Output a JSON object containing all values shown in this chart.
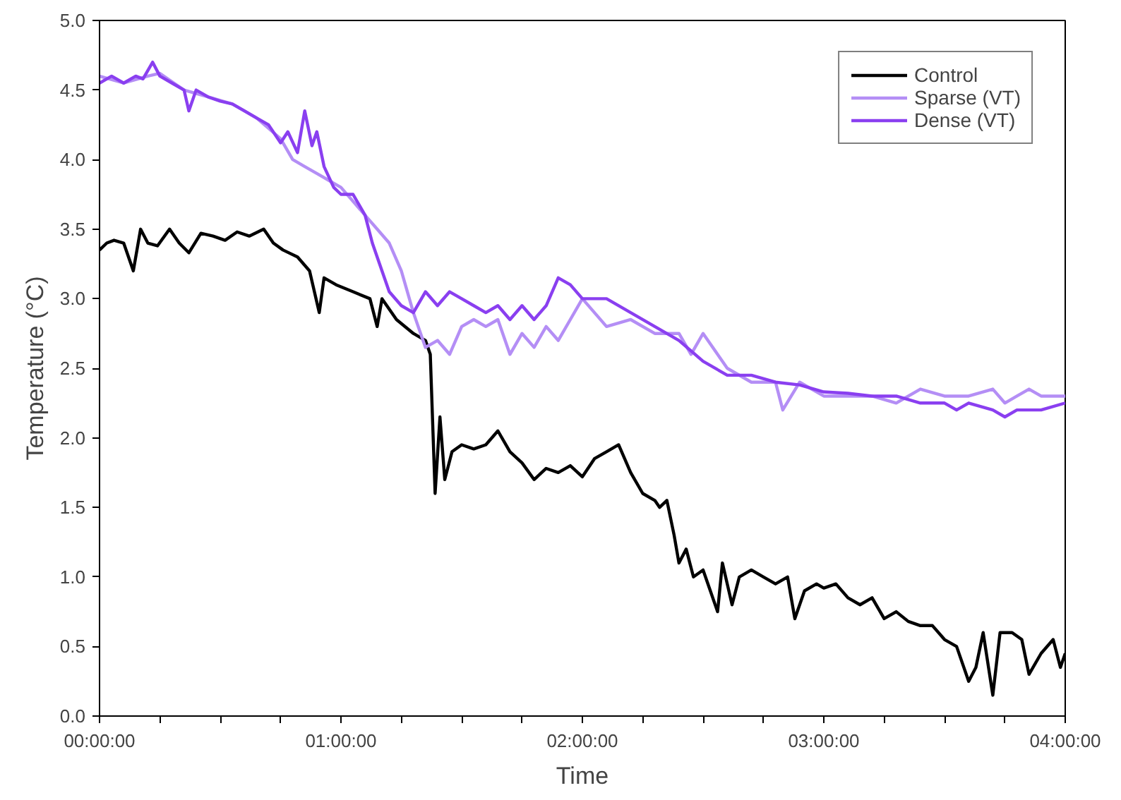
{
  "chart_data": {
    "type": "line",
    "xlabel": "Time",
    "ylabel": "Temperature (°C)",
    "xlim": [
      0,
      4
    ],
    "ylim": [
      0,
      5
    ],
    "xticks": [
      {
        "value": 0,
        "label": "00:00:00"
      },
      {
        "value": 0.25,
        "label": null
      },
      {
        "value": 0.5,
        "label": null
      },
      {
        "value": 0.75,
        "label": null
      },
      {
        "value": 1,
        "label": "01:00:00"
      },
      {
        "value": 1.25,
        "label": null
      },
      {
        "value": 1.5,
        "label": null
      },
      {
        "value": 1.75,
        "label": null
      },
      {
        "value": 2,
        "label": "02:00:00"
      },
      {
        "value": 2.25,
        "label": null
      },
      {
        "value": 2.5,
        "label": null
      },
      {
        "value": 2.75,
        "label": null
      },
      {
        "value": 3,
        "label": "03:00:00"
      },
      {
        "value": 3.25,
        "label": null
      },
      {
        "value": 3.5,
        "label": null
      },
      {
        "value": 3.75,
        "label": null
      },
      {
        "value": 4,
        "label": "04:00:00"
      }
    ],
    "yticks": [
      {
        "value": 0,
        "label": "0.0"
      },
      {
        "value": 0.5,
        "label": "0.5"
      },
      {
        "value": 1,
        "label": "1.0"
      },
      {
        "value": 1.5,
        "label": "1.5"
      },
      {
        "value": 2,
        "label": "2.0"
      },
      {
        "value": 2.5,
        "label": "2.5"
      },
      {
        "value": 3,
        "label": "3.0"
      },
      {
        "value": 3.5,
        "label": "3.5"
      },
      {
        "value": 4,
        "label": "4.0"
      },
      {
        "value": 4.5,
        "label": "4.5"
      },
      {
        "value": 5,
        "label": "5.0"
      }
    ],
    "grid": false,
    "legend": "top right",
    "line_style": "solid",
    "series": [
      {
        "name": "Control",
        "color": "#000000",
        "x": [
          0,
          0.03,
          0.06,
          0.1,
          0.14,
          0.17,
          0.2,
          0.24,
          0.29,
          0.33,
          0.37,
          0.42,
          0.47,
          0.52,
          0.57,
          0.62,
          0.68,
          0.72,
          0.76,
          0.82,
          0.87,
          0.91,
          0.93,
          0.98,
          1.05,
          1.12,
          1.15,
          1.17,
          1.23,
          1.3,
          1.35,
          1.37,
          1.39,
          1.41,
          1.43,
          1.46,
          1.5,
          1.55,
          1.6,
          1.65,
          1.7,
          1.75,
          1.8,
          1.85,
          1.9,
          1.95,
          2.0,
          2.05,
          2.1,
          2.15,
          2.2,
          2.25,
          2.3,
          2.32,
          2.35,
          2.38,
          2.4,
          2.43,
          2.46,
          2.5,
          2.53,
          2.56,
          2.58,
          2.62,
          2.65,
          2.7,
          2.75,
          2.8,
          2.85,
          2.88,
          2.92,
          2.97,
          3.0,
          3.05,
          3.1,
          3.15,
          3.2,
          3.25,
          3.3,
          3.35,
          3.4,
          3.45,
          3.5,
          3.55,
          3.6,
          3.63,
          3.66,
          3.7,
          3.73,
          3.78,
          3.82,
          3.85,
          3.9,
          3.95,
          3.98,
          4.0
        ],
        "values": [
          3.35,
          3.4,
          3.42,
          3.4,
          3.2,
          3.5,
          3.4,
          3.38,
          3.5,
          3.4,
          3.33,
          3.47,
          3.45,
          3.42,
          3.48,
          3.45,
          3.5,
          3.4,
          3.35,
          3.3,
          3.2,
          2.9,
          3.15,
          3.1,
          3.05,
          3.0,
          2.8,
          3.0,
          2.85,
          2.75,
          2.7,
          2.6,
          1.6,
          2.15,
          1.7,
          1.9,
          1.95,
          1.92,
          1.95,
          2.05,
          1.9,
          1.82,
          1.7,
          1.78,
          1.75,
          1.8,
          1.72,
          1.85,
          1.9,
          1.95,
          1.75,
          1.6,
          1.55,
          1.5,
          1.55,
          1.3,
          1.1,
          1.2,
          1.0,
          1.05,
          0.9,
          0.75,
          1.1,
          0.8,
          1.0,
          1.05,
          1.0,
          0.95,
          1.0,
          0.7,
          0.9,
          0.95,
          0.92,
          0.95,
          0.85,
          0.8,
          0.85,
          0.7,
          0.75,
          0.68,
          0.65,
          0.65,
          0.55,
          0.5,
          0.25,
          0.35,
          0.6,
          0.15,
          0.6,
          0.6,
          0.55,
          0.3,
          0.45,
          0.55,
          0.35,
          0.45
        ]
      },
      {
        "name": "Sparse (VT)",
        "color": "#b48ef5",
        "x": [
          0,
          0.1,
          0.2,
          0.25,
          0.35,
          0.45,
          0.55,
          0.65,
          0.75,
          0.8,
          0.85,
          0.9,
          0.95,
          1.0,
          1.05,
          1.1,
          1.15,
          1.2,
          1.25,
          1.3,
          1.35,
          1.4,
          1.45,
          1.5,
          1.55,
          1.6,
          1.65,
          1.7,
          1.75,
          1.8,
          1.85,
          1.9,
          1.95,
          2.0,
          2.05,
          2.1,
          2.2,
          2.3,
          2.4,
          2.45,
          2.5,
          2.6,
          2.7,
          2.8,
          2.83,
          2.9,
          3.0,
          3.1,
          3.2,
          3.3,
          3.4,
          3.5,
          3.6,
          3.7,
          3.75,
          3.8,
          3.85,
          3.9,
          4.0
        ],
        "values": [
          4.6,
          4.55,
          4.6,
          4.62,
          4.5,
          4.45,
          4.4,
          4.3,
          4.15,
          4.0,
          3.95,
          3.9,
          3.85,
          3.8,
          3.7,
          3.6,
          3.5,
          3.4,
          3.2,
          2.9,
          2.65,
          2.7,
          2.6,
          2.8,
          2.85,
          2.8,
          2.85,
          2.6,
          2.75,
          2.65,
          2.8,
          2.7,
          2.85,
          3.0,
          2.9,
          2.8,
          2.85,
          2.75,
          2.75,
          2.6,
          2.75,
          2.5,
          2.4,
          2.4,
          2.2,
          2.4,
          2.3,
          2.3,
          2.3,
          2.25,
          2.35,
          2.3,
          2.3,
          2.35,
          2.25,
          2.3,
          2.35,
          2.3,
          2.3
        ]
      },
      {
        "name": "Dense (VT)",
        "color": "#8a3ff0",
        "x": [
          0,
          0.05,
          0.1,
          0.15,
          0.18,
          0.22,
          0.25,
          0.3,
          0.35,
          0.37,
          0.4,
          0.45,
          0.5,
          0.55,
          0.6,
          0.65,
          0.7,
          0.75,
          0.78,
          0.82,
          0.85,
          0.88,
          0.9,
          0.93,
          0.97,
          1.0,
          1.05,
          1.1,
          1.13,
          1.17,
          1.2,
          1.25,
          1.3,
          1.35,
          1.4,
          1.45,
          1.5,
          1.55,
          1.6,
          1.65,
          1.7,
          1.75,
          1.8,
          1.85,
          1.9,
          1.95,
          2.0,
          2.1,
          2.2,
          2.3,
          2.4,
          2.5,
          2.6,
          2.7,
          2.8,
          2.9,
          3.0,
          3.1,
          3.2,
          3.3,
          3.4,
          3.5,
          3.55,
          3.6,
          3.7,
          3.75,
          3.8,
          3.9,
          4.0
        ],
        "values": [
          4.55,
          4.6,
          4.55,
          4.6,
          4.58,
          4.7,
          4.6,
          4.55,
          4.5,
          4.35,
          4.5,
          4.45,
          4.42,
          4.4,
          4.35,
          4.3,
          4.25,
          4.12,
          4.2,
          4.05,
          4.35,
          4.1,
          4.2,
          3.95,
          3.8,
          3.75,
          3.75,
          3.6,
          3.4,
          3.2,
          3.05,
          2.95,
          2.9,
          3.05,
          2.95,
          3.05,
          3.0,
          2.95,
          2.9,
          2.95,
          2.85,
          2.95,
          2.85,
          2.95,
          3.15,
          3.1,
          3.0,
          3.0,
          2.9,
          2.8,
          2.7,
          2.55,
          2.45,
          2.45,
          2.4,
          2.38,
          2.33,
          2.32,
          2.3,
          2.3,
          2.25,
          2.25,
          2.2,
          2.25,
          2.2,
          2.15,
          2.2,
          2.2,
          2.25
        ]
      }
    ]
  }
}
